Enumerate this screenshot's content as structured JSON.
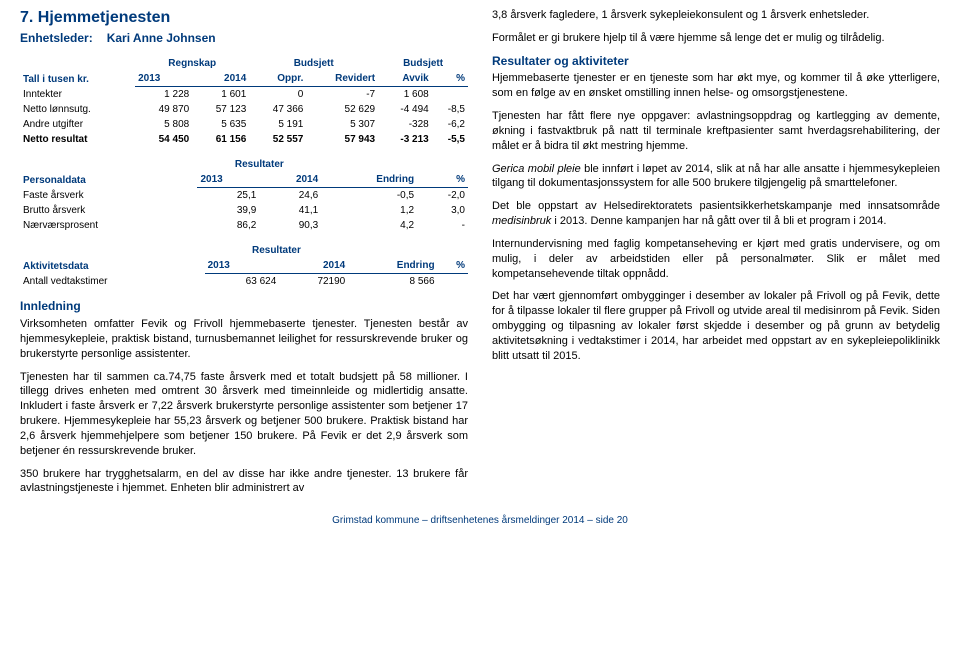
{
  "header": {
    "section_number": "7.",
    "section_title": "Hjemmetjenesten",
    "leader_label": "Enhetsleder:",
    "leader_name": "Kari Anne Johnsen"
  },
  "financials": {
    "caption": "Tall i tusen kr.",
    "head_top": [
      "",
      "Regnskap",
      "",
      "Budsjett",
      "",
      "Budsjett",
      ""
    ],
    "head": [
      "",
      "2013",
      "2014",
      "Oppr.",
      "Revidert",
      "Avvik",
      "%"
    ],
    "rows": [
      [
        "Inntekter",
        "1 228",
        "1 601",
        "0",
        "-7",
        "1 608",
        ""
      ],
      [
        "Netto lønnsutg.",
        "49 870",
        "57 123",
        "47 366",
        "52 629",
        "-4 494",
        "-8,5"
      ],
      [
        "Andre utgifter",
        "5 808",
        "5 635",
        "5 191",
        "5 307",
        "-328",
        "-6,2"
      ],
      [
        "Netto resultat",
        "54 450",
        "61 156",
        "52 557",
        "57 943",
        "-3 213",
        "-5,5"
      ]
    ]
  },
  "personal": {
    "caption": "Personaldata",
    "head_top": [
      "",
      "Resultater",
      "",
      "",
      ""
    ],
    "head": [
      "",
      "2013",
      "2014",
      "Endring",
      "%"
    ],
    "rows": [
      [
        "Faste årsverk",
        "25,1",
        "24,6",
        "-0,5",
        "-2,0"
      ],
      [
        "Brutto årsverk",
        "39,9",
        "41,1",
        "1,2",
        "3,0"
      ],
      [
        "Nærværsprosent",
        "86,2",
        "90,3",
        "4,2",
        "-"
      ]
    ]
  },
  "activity": {
    "caption": "Aktivitetsdata",
    "head_top": [
      "",
      "Resultater",
      "",
      "",
      ""
    ],
    "head": [
      "",
      "2013",
      "2014",
      "Endring",
      "%"
    ],
    "rows": [
      [
        "Antall vedtakstimer",
        "63 624",
        "72190",
        "8 566",
        ""
      ]
    ]
  },
  "left": {
    "innledning_h": "Innledning",
    "p1": "Virksomheten omfatter Fevik og Frivoll hjemmebaserte tjenester. Tjenesten består av hjemmesykepleie, praktisk bistand, turnusbemannet leilighet for ressurskrevende bruker og brukerstyrte personlige assistenter.",
    "p2": "Tjenesten har til sammen ca.74,75 faste årsverk med et totalt budsjett på 58 millioner. I tillegg drives enheten med omtrent 30 årsverk med timeinnleide og midlertidig ansatte. Inkludert i faste årsverk er 7,22 årsverk brukerstyrte personlige assistenter som betjener 17 brukere. Hjemmesykepleie har 55,23 årsverk og betjener 500 brukere. Praktisk bistand har 2,6 årsverk hjemmehjelpere som betjener 150 brukere. På Fevik er det 2,9 årsverk som betjener én ressurskrevende bruker.",
    "p3": "350 brukere har trygghetsalarm, en del av disse har ikke andre tjenester. 13 brukere får avlastningstjeneste i hjemmet. Enheten blir administrert av"
  },
  "right": {
    "p0": "3,8 årsverk fagledere, 1 årsverk sykepleiekonsulent og 1 årsverk enhetsleder.",
    "p1": "Formålet er gi brukere hjelp til å være hjemme så lenge det er mulig og tilrådelig.",
    "res_h": "Resultater og aktiviteter",
    "p2": "Hjemmebaserte tjenester er en tjeneste som har økt mye, og kommer til å øke ytterligere, som en følge av en ønsket omstilling innen helse- og omsorgstjenestene.",
    "p3": "Tjenesten har fått flere nye oppgaver: avlastningsoppdrag og kartlegging av demente, økning i fastvaktbruk på natt til terminale kreftpasienter samt hverdagsrehabilitering, der målet er å bidra til økt mestring hjemme.",
    "p4a": "Gerica mobil pleie",
    "p4b": " ble innført i løpet av 2014, slik at nå har alle ansatte i hjemmesykepleien tilgang til dokumentasjonssystem for alle 500 brukere tilgjengelig på smarttelefoner.",
    "p5a": "Det ble oppstart av Helsedirektoratets pasientsikkerhetskampanje med innsatsområde ",
    "p5b": "medisinbruk",
    "p5c": " i 2013. Denne kampanjen har nå gått over til å bli et program i 2014.",
    "p6": "Internundervisning med faglig kompetanseheving er kjørt med gratis undervisere, og om mulig, i deler av arbeidstiden eller på personalmøter. Slik er målet med kompetansehevende tiltak oppnådd.",
    "p7": "Det har vært gjennomført ombygginger i desember av lokaler på Frivoll og på Fevik, dette for å tilpasse lokaler til flere grupper på Frivoll og utvide areal til medisinrom på Fevik. Siden ombygging og tilpasning av lokaler først skjedde i desember og på grunn av betydelig aktivitetsøkning i vedtakstimer i 2014, har arbeidet med oppstart av en sykepleiepoliklinikk blitt utsatt til 2015."
  },
  "footer": "Grimstad kommune – driftsenhetenes årsmeldinger 2014 – side 20"
}
